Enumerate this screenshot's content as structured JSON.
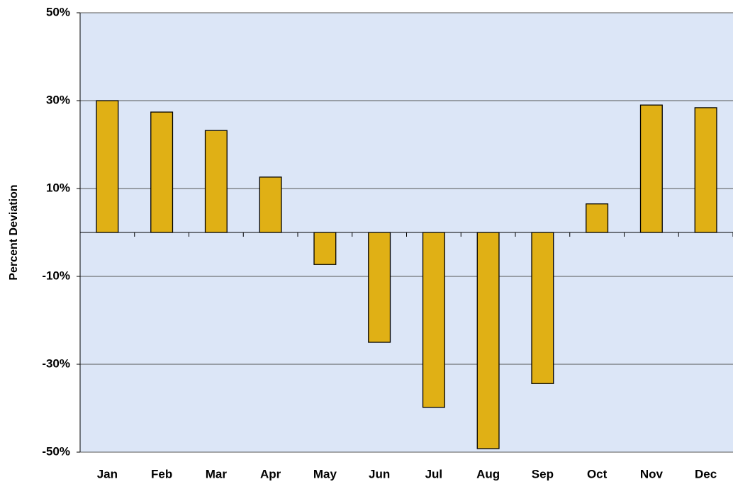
{
  "chart_data": {
    "type": "bar",
    "y_label": "Percent Deviation",
    "categories": [
      "Jan",
      "Feb",
      "Mar",
      "Apr",
      "May",
      "Jun",
      "Jul",
      "Aug",
      "Sep",
      "Oct",
      "Nov",
      "Dec"
    ],
    "values": [
      30,
      27.4,
      23.2,
      12.6,
      -7.3,
      -25,
      -39.8,
      -49.2,
      -34.4,
      6.5,
      29,
      28.4
    ],
    "color": "#e0b015",
    "ylim": [
      -50,
      50
    ],
    "yticks": [
      {
        "value": -50,
        "label": "-50%"
      },
      {
        "value": -30,
        "label": "-30%"
      },
      {
        "value": -10,
        "label": "-10%"
      },
      {
        "value": 10,
        "label": "10%"
      },
      {
        "value": 30,
        "label": "30%"
      },
      {
        "value": 50,
        "label": "50%"
      }
    ],
    "grid": true
  }
}
